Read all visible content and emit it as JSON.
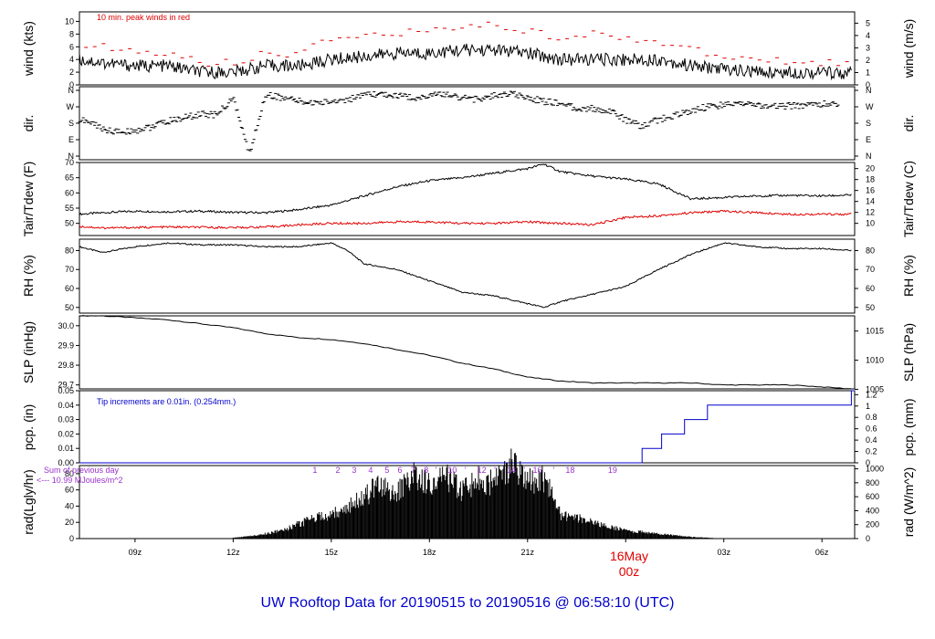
{
  "title": "UW Rooftop Data for 20190515  to  20190516 @ 06:58:10  (UTC)",
  "date_marker": {
    "day": "16May",
    "hour": "00z"
  },
  "x_ticks": [
    "09z",
    "12z",
    "15z",
    "18z",
    "21z",
    "03z",
    "06z"
  ],
  "colors": {
    "black": "#000000",
    "red": "#e00000",
    "blue": "#0000cc",
    "purple": "#9933cc"
  },
  "panels": {
    "wind": {
      "left_label": "wind (kts)",
      "right_label": "wind (m/s)",
      "left_ticks": [
        "0",
        "2",
        "4",
        "6",
        "8",
        "10"
      ],
      "right_ticks": [
        "0",
        "1",
        "2",
        "3",
        "4",
        "5"
      ],
      "note": "10 min. peak winds in red"
    },
    "dir": {
      "left_label": "dir.",
      "right_label": "dir.",
      "left_ticks": [
        "N",
        "E",
        "S",
        "W",
        "N"
      ],
      "right_ticks": [
        "N",
        "E",
        "S",
        "W",
        "N"
      ]
    },
    "temp": {
      "left_label": "Tair/Tdew (F)",
      "right_label": "Tair/Tdew (C)",
      "left_ticks": [
        "50",
        "55",
        "60",
        "65",
        "70"
      ],
      "right_ticks": [
        "10",
        "12",
        "14",
        "16",
        "18",
        "20"
      ]
    },
    "rh": {
      "left_label": "RH (%)",
      "right_label": "RH (%)",
      "left_ticks": [
        "50",
        "60",
        "70",
        "80"
      ],
      "right_ticks": [
        "50",
        "60",
        "70",
        "80"
      ]
    },
    "slp": {
      "left_label": "SLP (inHg)",
      "right_label": "SLP (hPa)",
      "left_ticks": [
        "29.7",
        "29.8",
        "29.9",
        "30.0"
      ],
      "right_ticks": [
        "1005",
        "1010",
        "1015"
      ]
    },
    "pcp": {
      "left_label": "pcp. (in)",
      "right_label": "pcp. (mm)",
      "left_ticks": [
        "0.00",
        "0.01",
        "0.02",
        "0.03",
        "0.04",
        "0.05"
      ],
      "right_ticks": [
        "0",
        "0.2",
        "0.4",
        "0.6",
        "0.8",
        "1",
        "1.2"
      ],
      "note": "Tip increments are 0.01in. (0.254mm.)"
    },
    "rad": {
      "left_label": "rad(Lgly/hr)",
      "right_label": "rad (W/m^2)",
      "left_ticks": [
        "0",
        "20",
        "40",
        "60",
        "80"
      ],
      "right_ticks": [
        "0",
        "200",
        "400",
        "600",
        "800",
        "1000"
      ],
      "note_line1": "Sum of previous day",
      "note_line2": "<--- 10.99 MJoules/m^2",
      "hour_markers": [
        "1",
        "2",
        "3",
        "4",
        "5",
        "6",
        "7",
        "8",
        "9",
        "10",
        "11",
        "12",
        "13",
        "14",
        "15",
        "16",
        "17",
        "18",
        "19"
      ]
    }
  },
  "chart_data": [
    {
      "type": "line",
      "name": "wind",
      "xlabel": "",
      "ylabel": "wind (kts)",
      "x_range_hours_utc": [
        7.3,
        7.0
      ],
      "ylim": [
        0,
        11.5
      ],
      "series": [
        {
          "name": "10 min. peak winds in red",
          "color": "#e00000",
          "style": "dash",
          "x": [
            7.5,
            8,
            9,
            10,
            11,
            12,
            13,
            14,
            15,
            16,
            17,
            18,
            19,
            20,
            21,
            22,
            23,
            24,
            25,
            26,
            27,
            28,
            29,
            30,
            30.9
          ],
          "values": [
            6.5,
            6,
            5.5,
            5,
            3.5,
            3.5,
            5,
            5,
            7,
            7.5,
            8,
            8.5,
            9,
            9.5,
            8.5,
            7.5,
            8,
            7,
            7,
            5.5,
            4.5,
            4,
            3.5,
            3.5,
            3
          ]
        },
        {
          "name": "wind",
          "color": "#000000",
          "style": "line",
          "x": [
            7.3,
            8,
            9,
            10,
            11,
            12,
            13,
            14,
            15,
            16,
            17,
            18,
            19,
            20,
            21,
            22,
            23,
            24,
            25,
            26,
            27,
            28,
            29,
            30,
            30.9
          ],
          "values": [
            4,
            3.5,
            3,
            3,
            2,
            2,
            3,
            3,
            4,
            4.5,
            5,
            5,
            5.5,
            5.5,
            5,
            4,
            4,
            4,
            4,
            3,
            2.5,
            2,
            2,
            2,
            1.8
          ]
        }
      ]
    },
    {
      "type": "scatter",
      "name": "dir",
      "ylabel": "dir.",
      "y_scale": [
        "N",
        "E",
        "S",
        "W",
        "N"
      ],
      "series": [
        {
          "name": "direction",
          "color": "#000000",
          "x": [
            7.3,
            7.7,
            8,
            8.5,
            9,
            9.5,
            10,
            10.5,
            11,
            11.5,
            12,
            12.5,
            13,
            13.5,
            14,
            14.5,
            15,
            15.5,
            16,
            16.5,
            17,
            17.5,
            18,
            18.5,
            19,
            19.5,
            20,
            20.5,
            21,
            21.5,
            22,
            22.5,
            23,
            23.5,
            24,
            24.5,
            25,
            25.5,
            26,
            26.5,
            27,
            27.5,
            28,
            28.5,
            29,
            29.5,
            30,
            30.5
          ],
          "values": [
            200,
            180,
            150,
            130,
            140,
            160,
            190,
            210,
            230,
            225,
            320,
            10,
            340,
            320,
            300,
            290,
            300,
            310,
            330,
            340,
            330,
            320,
            330,
            340,
            320,
            310,
            330,
            340,
            320,
            300,
            290,
            260,
            260,
            250,
            200,
            160,
            200,
            220,
            250,
            270,
            280,
            290,
            280,
            270,
            275,
            280,
            285,
            280
          ]
        }
      ]
    },
    {
      "type": "line",
      "name": "temp",
      "ylabel": "Tair/Tdew (F)",
      "ylim": [
        46,
        70
      ],
      "series": [
        {
          "name": "Tair",
          "color": "#000000",
          "x": [
            7.3,
            8,
            9,
            10,
            11,
            12,
            13,
            14,
            15,
            16,
            17,
            18,
            19,
            20,
            21,
            21.5,
            22,
            23,
            24,
            25,
            26,
            27,
            28,
            29,
            30,
            30.9
          ],
          "values": [
            53,
            53.5,
            54,
            53.8,
            54,
            53.6,
            53.5,
            54.5,
            56,
            59,
            62,
            64,
            65,
            66.5,
            68,
            69.5,
            67,
            65.5,
            64.5,
            63,
            58,
            58.5,
            59,
            59.2,
            59,
            59.3
          ]
        },
        {
          "name": "Tdew",
          "color": "#e00000",
          "x": [
            7.3,
            8,
            9,
            10,
            11,
            12,
            13,
            14,
            15,
            16,
            17,
            18,
            19,
            20,
            21,
            22,
            23,
            24,
            25,
            26,
            27,
            28,
            29,
            30,
            30.9
          ],
          "values": [
            49,
            48.5,
            48.6,
            48.8,
            48.7,
            48.6,
            48.8,
            49.5,
            50,
            50,
            50.5,
            50.5,
            50,
            50,
            50.5,
            50,
            49.5,
            52,
            52.5,
            53.5,
            54,
            53.5,
            53,
            53,
            53
          ]
        }
      ]
    },
    {
      "type": "line",
      "name": "rh",
      "ylabel": "RH (%)",
      "ylim": [
        47,
        86
      ],
      "series": [
        {
          "name": "RH",
          "color": "#000000",
          "x": [
            7.3,
            8,
            9,
            10,
            11,
            12,
            13,
            14,
            15,
            15.5,
            16,
            17,
            18,
            19,
            20,
            21,
            21.5,
            22,
            23,
            24,
            25,
            26,
            27,
            28,
            29,
            30,
            30.9
          ],
          "values": [
            82,
            79,
            82,
            84,
            83,
            83,
            82,
            82,
            84,
            80,
            73,
            70,
            64,
            58,
            56,
            52,
            50,
            53,
            57,
            61,
            70,
            78,
            84,
            82,
            81,
            81,
            80
          ]
        }
      ]
    },
    {
      "type": "line",
      "name": "slp",
      "ylabel": "SLP (inHg)",
      "ylim": [
        29.68,
        30.05
      ],
      "series": [
        {
          "name": "SLP",
          "color": "#000000",
          "x": [
            7.3,
            8,
            9,
            10,
            11,
            12,
            13,
            14,
            15,
            16,
            17,
            18,
            19,
            20,
            21,
            22,
            23,
            24,
            25,
            26,
            27,
            28,
            29,
            30,
            30.9
          ],
          "values": [
            30.05,
            30.05,
            30.04,
            30.03,
            30.01,
            29.99,
            29.96,
            29.94,
            29.93,
            29.91,
            29.88,
            29.85,
            29.81,
            29.78,
            29.74,
            29.72,
            29.71,
            29.71,
            29.71,
            29.71,
            29.7,
            29.7,
            29.7,
            29.69,
            29.68
          ]
        }
      ]
    },
    {
      "type": "line",
      "name": "pcp",
      "ylabel": "pcp. (in)",
      "ylim": [
        0,
        0.05
      ],
      "series": [
        {
          "name": "pcp",
          "color": "#0000cc",
          "style": "step",
          "x": [
            7.3,
            24.5,
            25.1,
            25.8,
            26.5,
            30.9
          ],
          "values": [
            0.0,
            0.01,
            0.02,
            0.03,
            0.04,
            0.05
          ]
        }
      ]
    },
    {
      "type": "bar",
      "name": "rad",
      "ylabel": "rad(Lgly/hr)",
      "ylim": [
        0,
        90
      ],
      "series": [
        {
          "name": "rad",
          "color": "#000000",
          "x": [
            12.0,
            12.5,
            13.0,
            13.5,
            14.0,
            14.5,
            15.0,
            15.5,
            16.0,
            16.5,
            17.0,
            17.5,
            18.0,
            18.5,
            19.0,
            19.5,
            20.0,
            20.5,
            21.0,
            21.5,
            22.0,
            22.5,
            23.0,
            23.5,
            24.0,
            24.5,
            25.0,
            25.5,
            26.0,
            26.5,
            27.0
          ],
          "values": [
            1,
            3,
            6,
            10,
            18,
            25,
            30,
            40,
            50,
            70,
            55,
            80,
            65,
            75,
            60,
            72,
            68,
            90,
            72,
            75,
            30,
            25,
            20,
            14,
            10,
            8,
            6,
            4,
            2,
            1,
            0
          ]
        }
      ]
    }
  ]
}
